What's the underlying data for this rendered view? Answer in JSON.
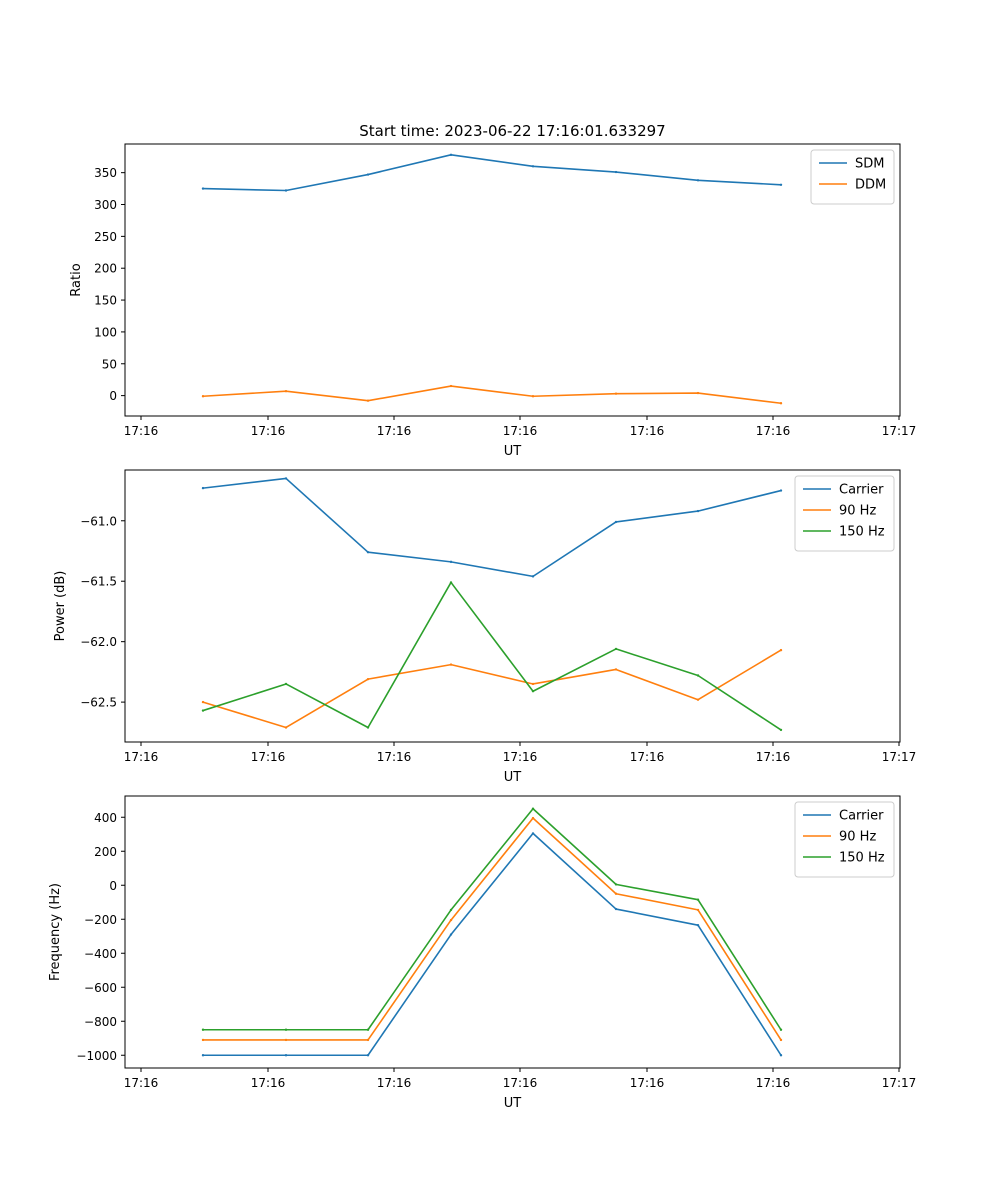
{
  "figure": {
    "title": "Start time: 2023-06-22 17:16:01.633297"
  },
  "colors": {
    "blue": "#1f77b4",
    "orange": "#ff7f0e",
    "green": "#2ca02c"
  },
  "chart_data": [
    {
      "type": "line",
      "title": "Start time: 2023-06-22 17:16:01.633297",
      "xlabel": "UT",
      "ylabel": "Ratio",
      "x_tick_labels": [
        "17:16",
        "17:16",
        "17:16",
        "17:16",
        "17:16",
        "17:16",
        "17:17"
      ],
      "ylim": [
        -32,
        395
      ],
      "y_ticks": [
        0,
        50,
        100,
        150,
        200,
        250,
        300,
        350
      ],
      "legend": "top-right",
      "series": [
        {
          "name": "SDM",
          "color": "#1f77b4",
          "values": [
            325,
            322,
            347,
            378,
            360,
            351,
            338,
            331
          ]
        },
        {
          "name": "DDM",
          "color": "#ff7f0e",
          "values": [
            -1,
            7,
            -8,
            15,
            -1,
            3,
            4,
            -12
          ]
        }
      ]
    },
    {
      "type": "line",
      "title": "",
      "xlabel": "UT",
      "ylabel": "Power (dB)",
      "x_tick_labels": [
        "17:16",
        "17:16",
        "17:16",
        "17:16",
        "17:16",
        "17:16",
        "17:17"
      ],
      "ylim": [
        -62.83,
        -60.58
      ],
      "y_ticks": [
        -62.5,
        -62.0,
        -61.5,
        -61.0
      ],
      "y_tick_labels": [
        "−62.5",
        "−62.0",
        "−61.5",
        "−61.0"
      ],
      "legend": "top-right",
      "series": [
        {
          "name": "Carrier",
          "color": "#1f77b4",
          "values": [
            -60.73,
            -60.65,
            -61.26,
            -61.34,
            -61.46,
            -61.01,
            -60.92,
            -60.75
          ]
        },
        {
          "name": "90 Hz",
          "color": "#ff7f0e",
          "values": [
            -62.5,
            -62.71,
            -62.31,
            -62.19,
            -62.35,
            -62.23,
            -62.48,
            -62.07
          ]
        },
        {
          "name": "150 Hz",
          "color": "#2ca02c",
          "values": [
            -62.57,
            -62.35,
            -62.71,
            -61.51,
            -62.41,
            -62.06,
            -62.28,
            -62.73
          ]
        }
      ]
    },
    {
      "type": "line",
      "title": "",
      "xlabel": "UT",
      "ylabel": "Frequency (Hz)",
      "x_tick_labels": [
        "17:16",
        "17:16",
        "17:16",
        "17:16",
        "17:16",
        "17:16",
        "17:17"
      ],
      "ylim": [
        -1075,
        525
      ],
      "y_ticks": [
        -1000,
        -800,
        -600,
        -400,
        -200,
        0,
        200,
        400
      ],
      "y_tick_labels": [
        "−1000",
        "−800",
        "−600",
        "−400",
        "−200",
        "0",
        "200",
        "400"
      ],
      "legend": "top-right",
      "series": [
        {
          "name": "Carrier",
          "color": "#1f77b4",
          "values": [
            -1000,
            -1000,
            -1000,
            -290,
            305,
            -140,
            -235,
            -1000
          ]
        },
        {
          "name": "90 Hz",
          "color": "#ff7f0e",
          "values": [
            -910,
            -910,
            -910,
            -205,
            395,
            -50,
            -145,
            -910
          ]
        },
        {
          "name": "150 Hz",
          "color": "#2ca02c",
          "values": [
            -850,
            -850,
            -850,
            -145,
            450,
            5,
            -85,
            -850
          ]
        }
      ]
    }
  ]
}
